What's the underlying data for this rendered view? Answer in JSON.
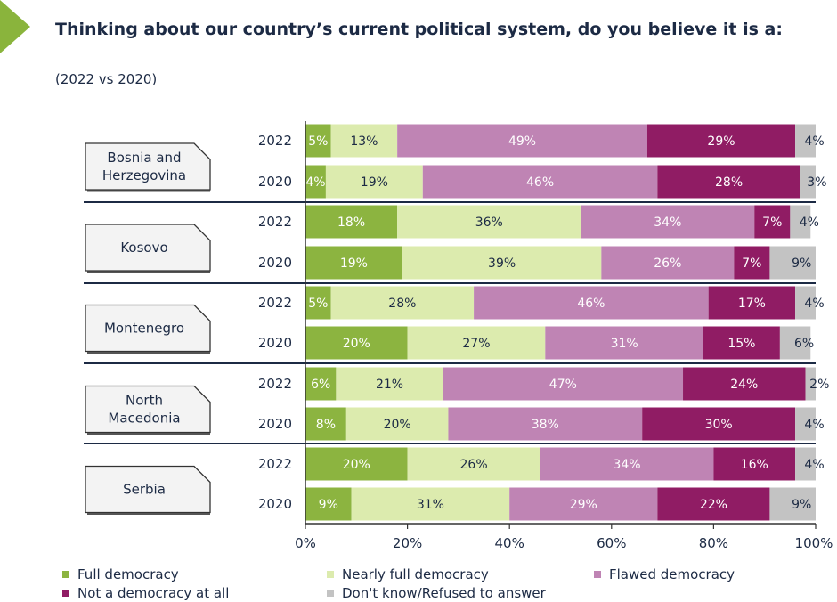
{
  "header": {
    "title": "Thinking about our country’s current political system, do you believe it is a:",
    "subtitle": "(2022 vs 2020)"
  },
  "chart_data": {
    "type": "bar",
    "orientation": "horizontal",
    "stacked": true,
    "title": "Thinking about our country’s current political system, do you believe it is a:",
    "subtitle": "(2022 vs 2020)",
    "xlim": [
      0,
      100
    ],
    "xticks": [
      "0%",
      "20%",
      "40%",
      "60%",
      "80%",
      "100%"
    ],
    "legend_position": "bottom",
    "series": [
      {
        "name": "Full democracy",
        "color": "#8cb440"
      },
      {
        "name": "Nearly full democracy",
        "color": "#dcebae"
      },
      {
        "name": "Flawed democracy",
        "color": "#bf84b4"
      },
      {
        "name": "Not a democracy at all",
        "color": "#901c64"
      },
      {
        "name": "Don't know/Refused to answer",
        "color": "#c3c3c3"
      }
    ],
    "groups": [
      {
        "country": [
          "Bosnia and",
          "Herzegovina"
        ],
        "rows": [
          {
            "year": "2022",
            "values": [
              5,
              13,
              49,
              29,
              4
            ]
          },
          {
            "year": "2020",
            "values": [
              4,
              19,
              46,
              28,
              3
            ]
          }
        ]
      },
      {
        "country": [
          "Kosovo"
        ],
        "rows": [
          {
            "year": "2022",
            "values": [
              18,
              36,
              34,
              7,
              4
            ]
          },
          {
            "year": "2020",
            "values": [
              19,
              39,
              26,
              7,
              9
            ]
          }
        ]
      },
      {
        "country": [
          "Montenegro"
        ],
        "rows": [
          {
            "year": "2022",
            "values": [
              5,
              28,
              46,
              17,
              4
            ]
          },
          {
            "year": "2020",
            "values": [
              20,
              27,
              31,
              15,
              6
            ]
          }
        ]
      },
      {
        "country": [
          "North",
          "Macedonia"
        ],
        "rows": [
          {
            "year": "2022",
            "values": [
              6,
              21,
              47,
              24,
              2
            ]
          },
          {
            "year": "2020",
            "values": [
              8,
              20,
              38,
              30,
              4
            ]
          }
        ]
      },
      {
        "country": [
          "Serbia"
        ],
        "rows": [
          {
            "year": "2022",
            "values": [
              20,
              26,
              34,
              16,
              4
            ]
          },
          {
            "year": "2020",
            "values": [
              9,
              31,
              29,
              22,
              9
            ]
          }
        ]
      }
    ]
  }
}
